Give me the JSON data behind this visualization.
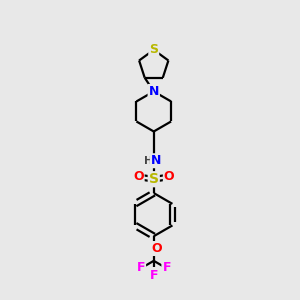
{
  "background_color": "#e8e8e8",
  "bond_color": "#000000",
  "atom_colors": {
    "S_thio": "#b8b800",
    "N": "#0000ff",
    "S_sulfo": "#b8b800",
    "O": "#ff0000",
    "F": "#ff00ff",
    "H": "#444444"
  },
  "figsize": [
    3.0,
    3.0
  ],
  "dpi": 100
}
